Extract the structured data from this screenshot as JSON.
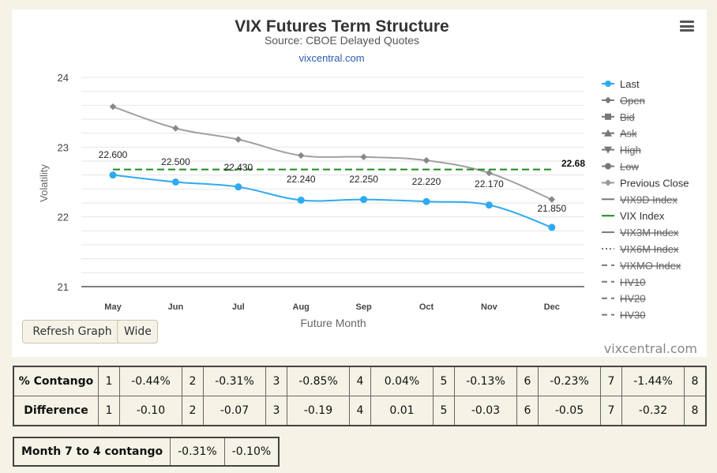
{
  "chart_data": {
    "type": "line",
    "title": "VIX Futures Term Structure",
    "subtitle": "Source: CBOE Delayed Quotes",
    "credit_link": "vixcentral.com",
    "xlabel": "Future Month",
    "ylabel": "Volatility",
    "categories": [
      "May",
      "Jun",
      "Jul",
      "Aug",
      "Sep",
      "Oct",
      "Nov",
      "Dec"
    ],
    "ylim": [
      21,
      24
    ],
    "yticks": [
      21,
      22,
      23,
      24
    ],
    "grid": true,
    "legend_position": "right",
    "series": [
      {
        "name": "Last",
        "values": [
          22.6,
          22.5,
          22.43,
          22.24,
          22.25,
          22.22,
          22.17,
          21.85
        ],
        "labels": [
          "22.600",
          "22.500",
          "22.430",
          "22.240",
          "22.250",
          "22.220",
          "22.170",
          "21.850"
        ],
        "color": "#2eaaf0",
        "style": "solid",
        "marker": "circle",
        "visible": true
      },
      {
        "name": "Previous Close",
        "values": [
          23.58,
          23.27,
          23.11,
          22.88,
          22.86,
          22.81,
          22.63,
          22.25
        ],
        "color": "#a0a0a0",
        "style": "solid",
        "marker": "diamond",
        "visible": true
      },
      {
        "name": "VIX Index",
        "values": [
          22.68,
          22.68,
          22.68,
          22.68,
          22.68,
          22.68,
          22.68,
          22.68
        ],
        "end_label": "22.68",
        "color": "#1a8a1a",
        "style": "dashed",
        "visible": true
      }
    ],
    "legend": [
      {
        "label": "Last",
        "symbol": "circle-line",
        "color": "#2eaaf0",
        "hidden": false
      },
      {
        "label": "Open",
        "symbol": "diamond-line",
        "color": "#666666",
        "hidden": true
      },
      {
        "label": "Bid",
        "symbol": "square-line",
        "color": "#666666",
        "hidden": true
      },
      {
        "label": "Ask",
        "symbol": "triangle-line",
        "color": "#666666",
        "hidden": true
      },
      {
        "label": "High",
        "symbol": "triangle-down-line",
        "color": "#666666",
        "hidden": true
      },
      {
        "label": "Low",
        "symbol": "circle-line",
        "color": "#666666",
        "hidden": true
      },
      {
        "label": "Previous Close",
        "symbol": "diamond-line",
        "color": "#999999",
        "hidden": false
      },
      {
        "label": "VIX9D Index",
        "symbol": "line",
        "color": "#666666",
        "hidden": true
      },
      {
        "label": "VIX Index",
        "symbol": "line",
        "color": "#1a8a1a",
        "hidden": false
      },
      {
        "label": "VIX3M Index",
        "symbol": "line",
        "color": "#666666",
        "hidden": true
      },
      {
        "label": "VIX6M Index",
        "symbol": "dotted",
        "color": "#666666",
        "hidden": true
      },
      {
        "label": "VIXMO Index",
        "symbol": "dashed",
        "color": "#666666",
        "hidden": true
      },
      {
        "label": "HV10",
        "symbol": "dashed",
        "color": "#666666",
        "hidden": true
      },
      {
        "label": "HV20",
        "symbol": "dashed",
        "color": "#666666",
        "hidden": true
      },
      {
        "label": "HV30",
        "symbol": "dashed",
        "color": "#666666",
        "hidden": true
      }
    ]
  },
  "buttons": {
    "refresh": "Refresh Graph",
    "wide": "Wide"
  },
  "watermark": "vixcentral.com",
  "contango_table": {
    "rows": [
      {
        "header": "% Contango",
        "cells": [
          {
            "n": "1",
            "v": "-0.44%"
          },
          {
            "n": "2",
            "v": "-0.31%"
          },
          {
            "n": "3",
            "v": "-0.85%"
          },
          {
            "n": "4",
            "v": "0.04%"
          },
          {
            "n": "5",
            "v": "-0.13%"
          },
          {
            "n": "6",
            "v": "-0.23%"
          },
          {
            "n": "7",
            "v": "-1.44%"
          }
        ],
        "last": "8"
      },
      {
        "header": "Difference",
        "cells": [
          {
            "n": "1",
            "v": "-0.10"
          },
          {
            "n": "2",
            "v": "-0.07"
          },
          {
            "n": "3",
            "v": "-0.19"
          },
          {
            "n": "4",
            "v": "0.01"
          },
          {
            "n": "5",
            "v": "-0.03"
          },
          {
            "n": "6",
            "v": "-0.05"
          },
          {
            "n": "7",
            "v": "-0.32"
          }
        ],
        "last": "8"
      }
    ]
  },
  "month_table": {
    "header": "Month 7 to 4 contango",
    "v1": "-0.31%",
    "v2": "-0.10%"
  }
}
